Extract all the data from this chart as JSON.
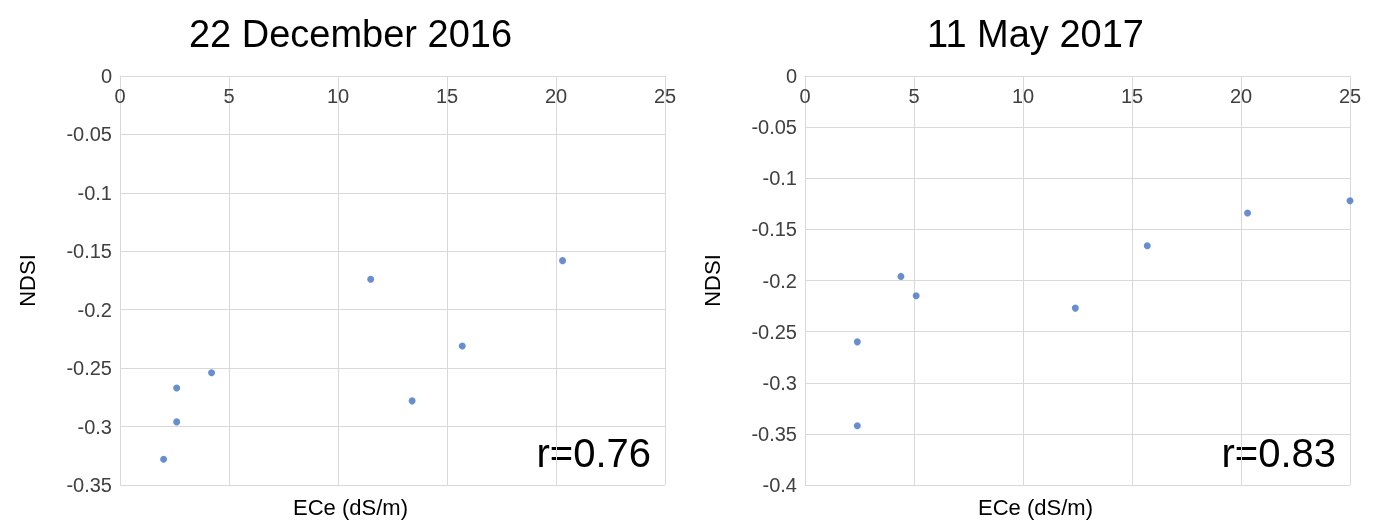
{
  "chart_data": [
    {
      "type": "scatter",
      "title": "22 December 2016",
      "xlabel": "ECe (dS/m)",
      "ylabel": "NDSI",
      "annotations": [
        "r=0.76"
      ],
      "x": [
        2.0,
        2.6,
        2.6,
        4.2,
        11.5,
        13.4,
        15.7,
        20.3
      ],
      "series": [
        {
          "color": "#4472c4",
          "values": [
            -0.328,
            -0.296,
            -0.267,
            -0.254,
            -0.174,
            -0.278,
            -0.231,
            -0.158
          ]
        }
      ],
      "xlim": [
        0,
        25
      ],
      "xticks": [
        0,
        5,
        10,
        15,
        20,
        25
      ],
      "ylim": [
        -0.35,
        0
      ],
      "yticks": [
        -0.35,
        -0.3,
        -0.25,
        -0.2,
        -0.15,
        -0.1,
        -0.05,
        0
      ],
      "grid": true,
      "marker": "circle"
    },
    {
      "type": "scatter",
      "title": "11 May 2017",
      "xlabel": "ECe (dS/m)",
      "ylabel": "NDSI",
      "annotations": [
        "r=0.83"
      ],
      "x": [
        2.4,
        2.4,
        4.4,
        5.1,
        12.4,
        15.7,
        20.3,
        25.0
      ],
      "series": [
        {
          "color": "#4472c4",
          "values": [
            -0.342,
            -0.26,
            -0.196,
            -0.215,
            -0.227,
            -0.166,
            -0.134,
            -0.122
          ]
        }
      ],
      "xlim": [
        0,
        25
      ],
      "xticks": [
        0,
        5,
        10,
        15,
        20,
        25
      ],
      "ylim": [
        -0.4,
        0
      ],
      "yticks": [
        -0.4,
        -0.35,
        -0.3,
        -0.25,
        -0.2,
        -0.15,
        -0.1,
        -0.05,
        0
      ],
      "grid": true,
      "marker": "circle"
    }
  ]
}
